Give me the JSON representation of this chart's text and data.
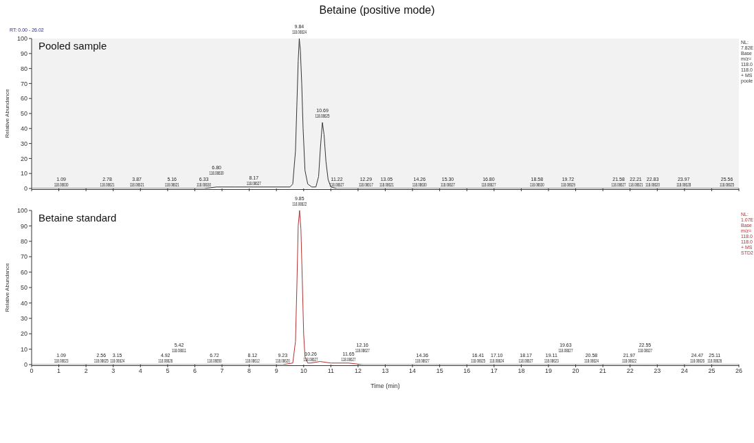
{
  "chart_data": [
    {
      "type": "line",
      "title": "Betaine (positive mode)",
      "subtitle": "Pooled sample",
      "ylabel": "Relative Abundance",
      "xlim": [
        0,
        26
      ],
      "xticks": [
        0,
        1,
        2,
        3,
        4,
        5,
        6,
        7,
        8,
        9,
        10,
        11,
        12,
        13,
        14,
        15,
        16,
        17,
        18,
        19,
        20,
        21,
        22,
        23,
        24,
        25,
        26
      ],
      "ylim": [
        0,
        100
      ],
      "yticks": [
        0,
        10,
        20,
        30,
        40,
        50,
        60,
        70,
        80,
        90,
        100
      ],
      "tick_labels": "y",
      "series": [
        {
          "color": "#333333",
          "x": [
            0,
            1.09,
            2.78,
            3.87,
            5.16,
            6.33,
            6.8,
            7.5,
            8.17,
            9.0,
            9.5,
            9.6,
            9.7,
            9.75,
            9.8,
            9.84,
            9.88,
            9.93,
            9.98,
            10.05,
            10.15,
            10.3,
            10.45,
            10.55,
            10.62,
            10.69,
            10.75,
            10.82,
            10.9,
            11.0,
            11.22,
            12.29,
            13.05,
            14.26,
            15.3,
            16.8,
            18.58,
            19.72,
            21.58,
            22.21,
            22.83,
            23.97,
            25.56,
            26
          ],
          "values": [
            0,
            0,
            0,
            0,
            0,
            0,
            1,
            1,
            1,
            1,
            1,
            3,
            25,
            55,
            85,
            100,
            92,
            70,
            40,
            12,
            3,
            1,
            1,
            8,
            28,
            44,
            36,
            18,
            6,
            1,
            0,
            0,
            0,
            0,
            0,
            0,
            0,
            0,
            0,
            0,
            0,
            0,
            0,
            0
          ]
        }
      ],
      "annotations": [
        "RT: 0.00 - 26.02",
        "NL:\n7.82E\nBase\nm/z=\n118.0\n118.0\n+ MS\npoole",
        {
          "text": "1.09\n118.08630",
          "x": 1.09,
          "y": 0
        },
        {
          "text": "2.78\n118.08621",
          "x": 2.78,
          "y": 0
        },
        {
          "text": "3.87\n118.08621",
          "x": 3.87,
          "y": 0
        },
        {
          "text": "5.16\n118.08621",
          "x": 5.16,
          "y": 0
        },
        {
          "text": "6.33\n118.08630",
          "x": 6.33,
          "y": 0
        },
        {
          "text": "6.80\n118.08630",
          "x": 6.8,
          "y": 1
        },
        {
          "text": "8.17\n118.08627",
          "x": 8.17,
          "y": 1
        },
        {
          "text": "9.84\n118.08624",
          "x": 9.84,
          "y": 100
        },
        {
          "text": "10.69\n118.08625",
          "x": 10.69,
          "y": 44
        },
        {
          "text": "11.22\n118.08627",
          "x": 11.22,
          "y": 0
        },
        {
          "text": "12.29\n118.08617",
          "x": 12.29,
          "y": 0
        },
        {
          "text": "13.05\n118.08621",
          "x": 13.05,
          "y": 0
        },
        {
          "text": "14.26\n118.08630",
          "x": 14.26,
          "y": 0
        },
        {
          "text": "15.30\n118.08627",
          "x": 15.3,
          "y": 0
        },
        {
          "text": "16.80\n118.08627",
          "x": 16.8,
          "y": 0
        },
        {
          "text": "18.58\n118.08630",
          "x": 18.58,
          "y": 0
        },
        {
          "text": "19.72\n118.08629",
          "x": 19.72,
          "y": 0
        },
        {
          "text": "21.58\n118.08627",
          "x": 21.58,
          "y": 0
        },
        {
          "text": "22.21\n118.08621",
          "x": 22.21,
          "y": 0
        },
        {
          "text": "22.83\n118.08620",
          "x": 22.83,
          "y": 0
        },
        {
          "text": "23.97\n118.08628",
          "x": 23.97,
          "y": 0
        },
        {
          "text": "25.56\n118.08625",
          "x": 25.56,
          "y": 0
        }
      ]
    },
    {
      "type": "line",
      "subtitle": "Betaine standard",
      "ylabel": "Relative Abundance",
      "xlabel": "Time (min)",
      "xlim": [
        0,
        26
      ],
      "xticks": [
        0,
        1,
        2,
        3,
        4,
        5,
        6,
        7,
        8,
        9,
        10,
        11,
        12,
        13,
        14,
        15,
        16,
        17,
        18,
        19,
        20,
        21,
        22,
        23,
        24,
        25,
        26
      ],
      "ylim": [
        0,
        100
      ],
      "yticks": [
        0,
        10,
        20,
        30,
        40,
        50,
        60,
        70,
        80,
        90,
        100
      ],
      "series": [
        {
          "color": "#b03030",
          "x": [
            0,
            1.09,
            2.56,
            3.15,
            4.92,
            5.42,
            6.72,
            8.12,
            9.23,
            9.6,
            9.7,
            9.75,
            9.8,
            9.85,
            9.9,
            9.95,
            10.0,
            10.05,
            10.15,
            10.26,
            10.6,
            11.0,
            11.65,
            12.16,
            14.36,
            16.41,
            17.1,
            18.17,
            19.11,
            19.63,
            20.58,
            21.97,
            22.55,
            24.47,
            25.11,
            26
          ],
          "values": [
            0,
            0,
            0,
            0,
            0,
            0,
            0,
            0,
            0,
            1,
            15,
            50,
            90,
            100,
            88,
            55,
            20,
            5,
            1,
            1,
            2,
            1,
            1,
            0,
            0,
            0,
            0,
            0,
            0,
            0,
            0,
            0,
            0,
            0,
            0,
            0
          ]
        }
      ],
      "annotations": [
        "NL:\n1.07E\nBase\nm/z=\n118.0\n118.0\n+ MS\nSTD2",
        {
          "text": "1.09\n118.08623",
          "x": 1.09,
          "y": 0
        },
        {
          "text": "2.56\n118.08625",
          "x": 2.56,
          "y": 0
        },
        {
          "text": "3.15\n118.08624",
          "x": 3.15,
          "y": 0
        },
        {
          "text": "4.92\n118.08626",
          "x": 4.92,
          "y": 0
        },
        {
          "text": "5.42\n118.08611",
          "x": 5.42,
          "y": 0
        },
        {
          "text": "6.72\n118.08650",
          "x": 6.72,
          "y": 0
        },
        {
          "text": "8.12\n118.08612",
          "x": 8.12,
          "y": 0
        },
        {
          "text": "9.23\n118.08620",
          "x": 9.23,
          "y": 0
        },
        {
          "text": "9.85\n118.08622",
          "x": 9.85,
          "y": 100
        },
        {
          "text": "10.26\n118.08627",
          "x": 10.26,
          "y": 1
        },
        {
          "text": "11.65\n118.08627",
          "x": 11.65,
          "y": 1
        },
        {
          "text": "12.16\n118.08627",
          "x": 12.16,
          "y": 0
        },
        {
          "text": "14.36\n118.08627",
          "x": 14.36,
          "y": 0
        },
        {
          "text": "16.41\n118.08625",
          "x": 16.41,
          "y": 0
        },
        {
          "text": "17.10\n118.08624",
          "x": 17.1,
          "y": 0
        },
        {
          "text": "18.17\n118.08627",
          "x": 18.17,
          "y": 0
        },
        {
          "text": "19.11\n118.08623",
          "x": 19.11,
          "y": 0
        },
        {
          "text": "19.63\n118.08627",
          "x": 19.63,
          "y": 0
        },
        {
          "text": "20.58\n118.08624",
          "x": 20.58,
          "y": 0
        },
        {
          "text": "21.97\n118.08622",
          "x": 21.97,
          "y": 0
        },
        {
          "text": "22.55\n118.08627",
          "x": 22.55,
          "y": 0
        },
        {
          "text": "24.47\n118.08626",
          "x": 24.47,
          "y": 0
        },
        {
          "text": "25.11\n118.08626",
          "x": 25.11,
          "y": 0
        }
      ]
    }
  ]
}
